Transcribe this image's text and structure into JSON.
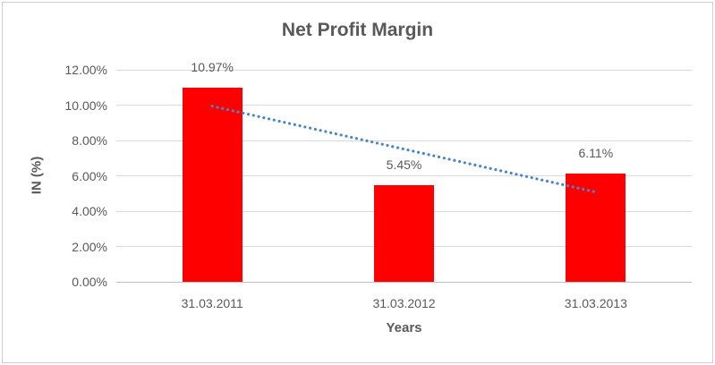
{
  "chart_data": {
    "type": "bar",
    "title": "Net Profit Margin",
    "categories": [
      "31.03.2011",
      "31.03.2012",
      "31.03.2013"
    ],
    "values": [
      10.97,
      5.45,
      6.11
    ],
    "data_labels": [
      "10.97%",
      "5.45%",
      "6.11%"
    ],
    "xlabel": "Years",
    "ylabel": "IN (%)",
    "ylim": [
      0,
      12
    ],
    "ytick_step": 2,
    "ytick_labels": [
      "0.00%",
      "2.00%",
      "4.00%",
      "6.00%",
      "8.00%",
      "10.00%",
      "12.00%"
    ],
    "grid": true,
    "legend": "none",
    "bar_color": "#ff0000",
    "text_color": "#595959",
    "gridline_color": "#d9d9d9",
    "axis_line_color": "#c0c0c0",
    "trendline": {
      "type": "linear",
      "style": "dotted",
      "color": "#4a86c8",
      "start_value": 9.94,
      "end_value": 5.08
    }
  }
}
